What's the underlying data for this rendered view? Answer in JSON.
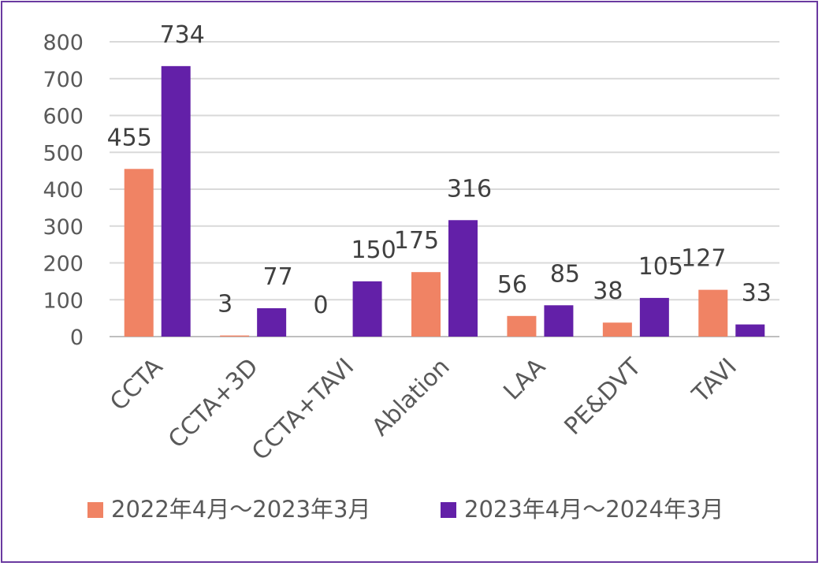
{
  "chart_data": {
    "type": "bar",
    "title": "",
    "xlabel": "",
    "ylabel": "",
    "ylim": [
      0,
      800
    ],
    "yticks": [
      0,
      100,
      200,
      300,
      400,
      500,
      600,
      700,
      800
    ],
    "grid": true,
    "legend_position": "bottom",
    "categories": [
      "CCTA",
      "CCTA+3D",
      "CCTA+TAVI",
      "Ablation",
      "LAA",
      "PE&DVT",
      "TAVI"
    ],
    "series": [
      {
        "name": "2022年4月～2023年3月",
        "color": "#f08364",
        "values": [
          455,
          3,
          0,
          175,
          56,
          38,
          127
        ]
      },
      {
        "name": "2023年4月～2024年3月",
        "color": "#6320a8",
        "values": [
          734,
          77,
          150,
          316,
          85,
          105,
          33
        ]
      }
    ]
  }
}
